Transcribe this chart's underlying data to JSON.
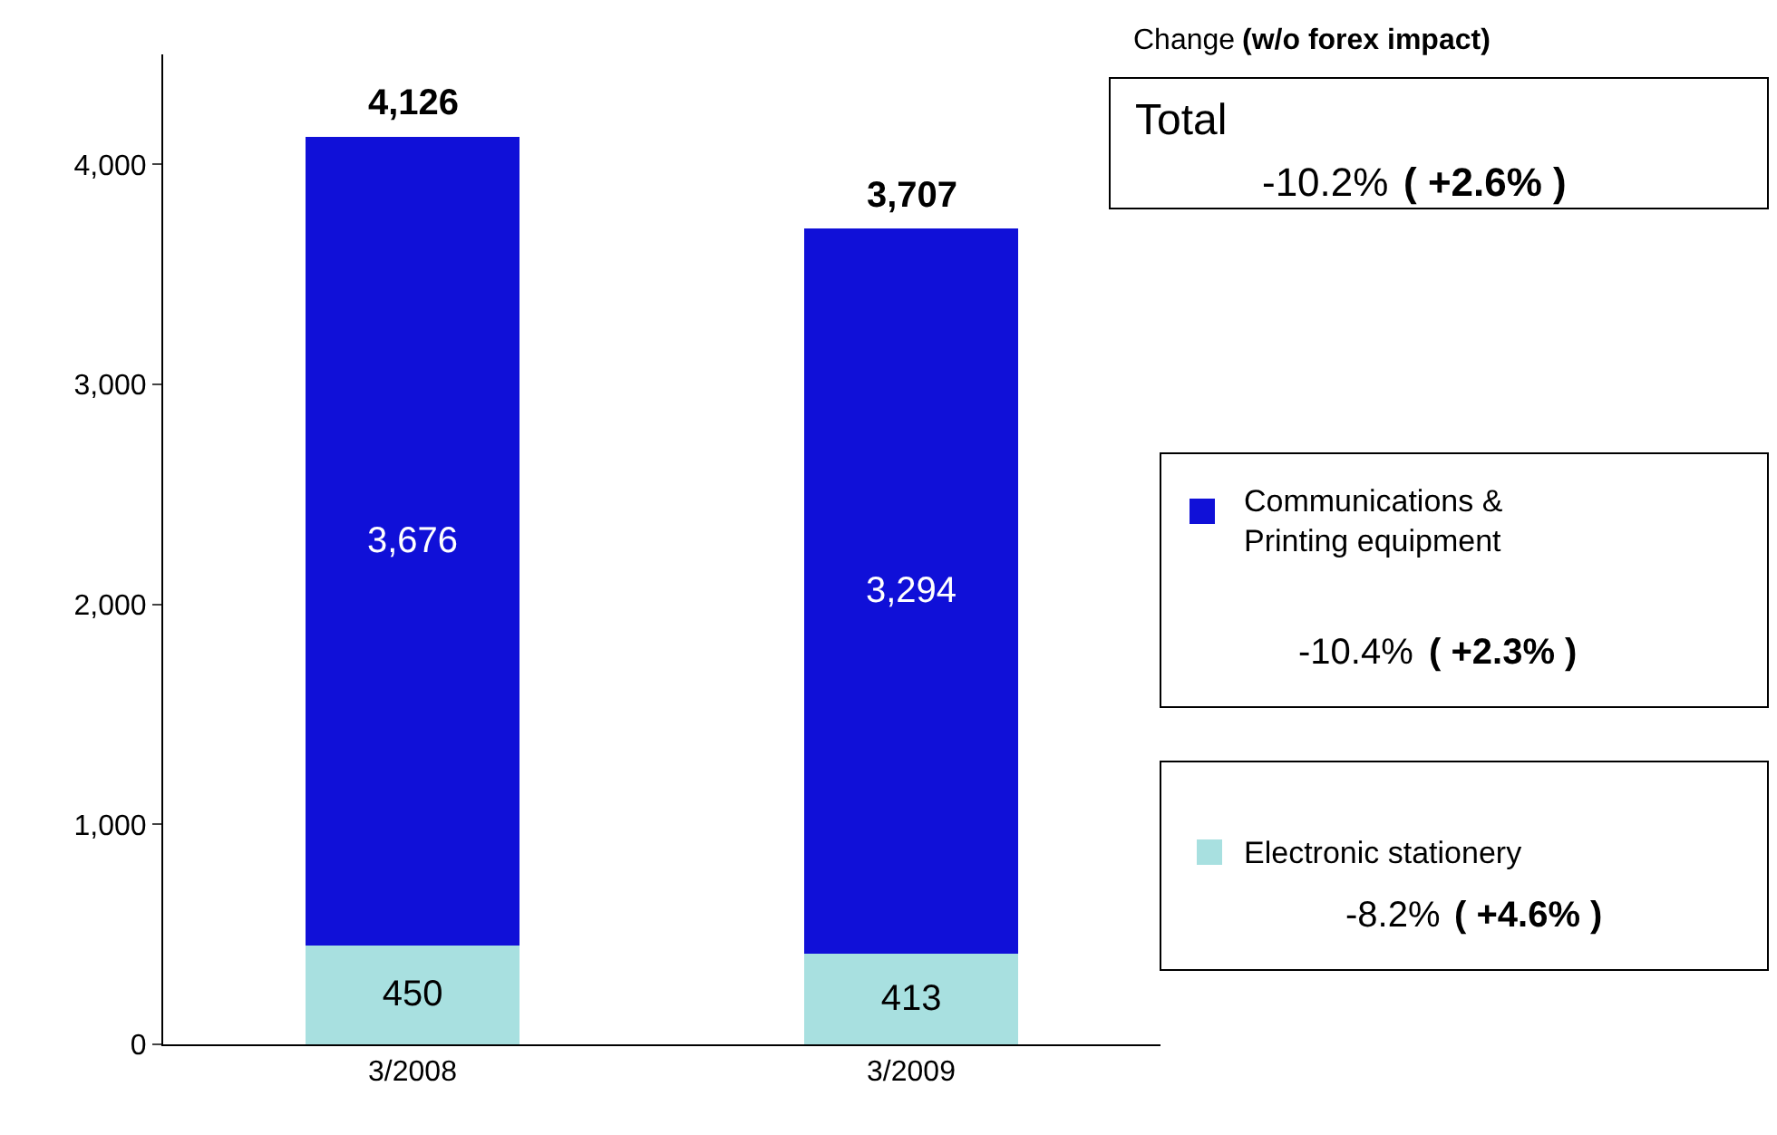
{
  "chart_data": {
    "type": "bar",
    "stacked": true,
    "categories": [
      "3/2008",
      "3/2009"
    ],
    "series": [
      {
        "name": "Electronic stationery",
        "color": "#a8e0e0",
        "values": [
          450,
          413
        ],
        "value_labels": [
          "450",
          "413"
        ]
      },
      {
        "name": "Communications & Printing equipment",
        "color": "#1010d8",
        "values": [
          3676,
          3294
        ],
        "value_labels": [
          "3,676",
          "3,294"
        ]
      }
    ],
    "totals": [
      "4,126",
      "3,707"
    ],
    "ylim": [
      0,
      4500
    ],
    "yticks": [
      0,
      {
        "value": 1000,
        "label": "1,000"
      },
      {
        "value": 2000,
        "label": "2,000"
      },
      {
        "value": 3000,
        "label": "3,000"
      },
      {
        "value": 4000,
        "label": "4,000"
      }
    ],
    "legend": "right",
    "annotations": [
      "Change",
      "(w/o forex impact)",
      "Total",
      "-10.2%",
      "( +2.6% )",
      "-10.4%",
      "( +2.3% )",
      "-8.2%",
      "( +4.6% )"
    ]
  }
}
